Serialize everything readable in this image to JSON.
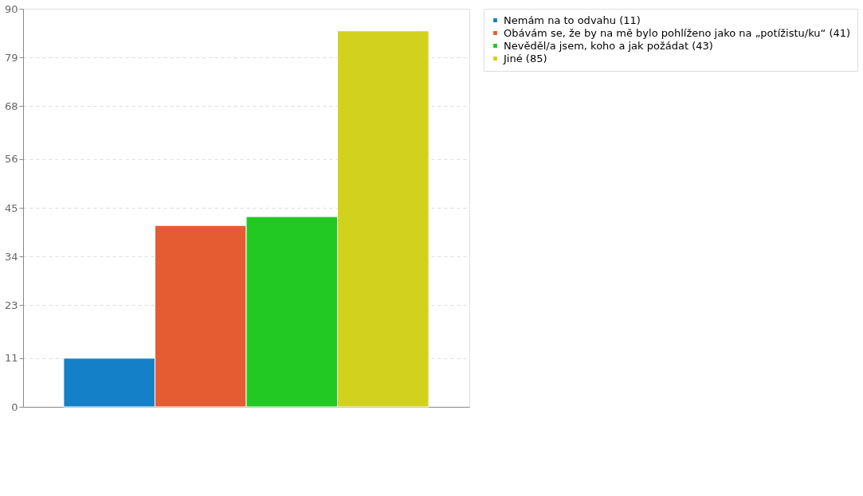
{
  "chart_data": {
    "type": "bar",
    "categories": [
      null
    ],
    "series": [
      {
        "name": "Nemám na to odvahu (11)",
        "color": "#1380c8",
        "values": [
          11
        ]
      },
      {
        "name": "Obávám se, že by na mě bylo pohlíženo jako na „potížistu/ku“ (41)",
        "color": "#e65c32",
        "values": [
          41
        ]
      },
      {
        "name": "Nevěděl/a jsem, koho a jak požádat (43)",
        "color": "#21c922",
        "values": [
          43
        ]
      },
      {
        "name": "Jiné (85)",
        "color": "#d2d21e",
        "values": [
          85
        ]
      }
    ],
    "ylim": [
      0,
      90
    ],
    "yticks": [
      0,
      11,
      23,
      34,
      45,
      56,
      68,
      79,
      90
    ],
    "grid": "y",
    "legend": "top right",
    "tick_labels": "y"
  }
}
